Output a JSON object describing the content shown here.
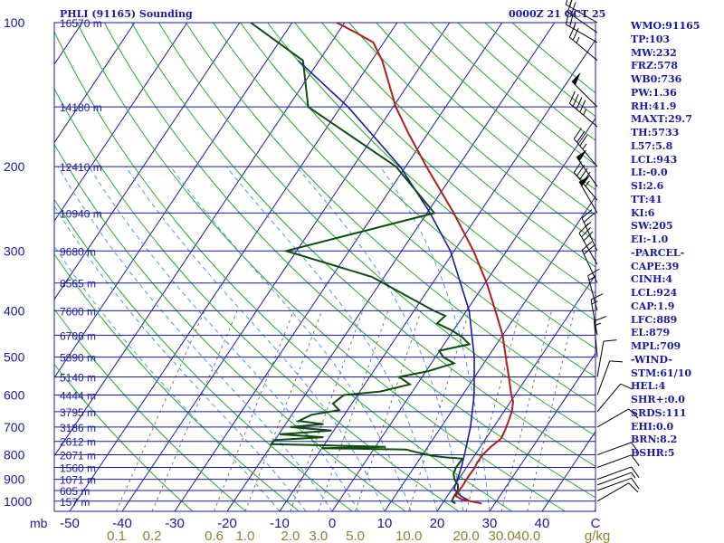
{
  "header": {
    "station": "PHLI (91165) Sounding",
    "datetime": "0000Z 21 OCT 25"
  },
  "indices": [
    "WMO:91165",
    "TP:103",
    "MW:232",
    "FRZ:578",
    "WB0:736",
    "PW:1.36",
    "RH:41.9",
    "MAXT:29.7",
    "TH:5733",
    "L57:5.8",
    "LCL:943",
    "LI:-0.0",
    "SI:2.6",
    "TT:41",
    "KI:6",
    "SW:205",
    "EI:-1.0",
    "-PARCEL-",
    "CAPE:39",
    "CINH:4",
    "LCL:924",
    "CAP:1.9",
    "LFC:889",
    "EL:879",
    "MPL:709",
    "-WIND-",
    "STM:61/10",
    "HEL:4",
    "SHR+:0.0",
    "SRDS:111",
    "EHI:0.0",
    "BRN:8.2",
    "BSHR:5"
  ],
  "colors": {
    "isobar": "#1a1a9e",
    "isotherm": "#1a1a9e",
    "dry_adiabat": "#22aa22",
    "moist_adiabat": "#46a0d2",
    "mixing_ratio": "#777777",
    "temperature": "#b01e1e",
    "dewpoint": "#0e4d0e",
    "parcel": "#1a1a9e",
    "axis_text": "#1a1a9e",
    "mixing_text": "#8c8232",
    "wind_barb": "#000000"
  },
  "chart_data": {
    "type": "skew-t",
    "title": "PHLI (91165) Sounding",
    "subtitle": "0000Z 21 OCT 25",
    "pressure_axis": {
      "unit": "mb",
      "ticks": [
        100,
        200,
        300,
        400,
        500,
        600,
        700,
        800,
        900,
        1000
      ],
      "range": [
        100,
        1000
      ]
    },
    "temperature_axis": {
      "unit": "C",
      "ticks": [
        -50,
        -40,
        -30,
        -20,
        -10,
        0,
        10,
        20,
        30,
        40
      ],
      "range": [
        -50,
        50
      ]
    },
    "mixing_ratio_axis": {
      "unit": "g/kg",
      "ticks": [
        "0.1",
        "0.2",
        "0.6",
        "1.0",
        "2.0",
        "3.0",
        "5.0",
        "10.0",
        "20.0",
        "30.0",
        "40.0"
      ],
      "values": [
        0.1,
        0.2,
        0.6,
        1.0,
        2.0,
        3.0,
        5.0,
        10.0,
        20.0,
        30.0,
        40.0
      ]
    },
    "height_labels": [
      {
        "p": 100,
        "text": "16570 m"
      },
      {
        "p": 150,
        "text": "14180 m"
      },
      {
        "p": 200,
        "text": "12410 m"
      },
      {
        "p": 250,
        "text": "10940 m"
      },
      {
        "p": 300,
        "text": "9680 m"
      },
      {
        "p": 350,
        "text": "8565 m"
      },
      {
        "p": 400,
        "text": "7600 m"
      },
      {
        "p": 450,
        "text": "6706 m"
      },
      {
        "p": 500,
        "text": "5890 m"
      },
      {
        "p": 550,
        "text": "5140 m"
      },
      {
        "p": 600,
        "text": "4444 m"
      },
      {
        "p": 650,
        "text": "3795 m"
      },
      {
        "p": 700,
        "text": "3186 m"
      },
      {
        "p": 750,
        "text": "2612 m"
      },
      {
        "p": 800,
        "text": "2071 m"
      },
      {
        "p": 850,
        "text": "1560 m"
      },
      {
        "p": 900,
        "text": "1071 m"
      },
      {
        "p": 950,
        "text": "605 m"
      },
      {
        "p": 1000,
        "text": "157 m"
      }
    ],
    "extra_isobars": [
      105,
      110,
      120,
      150,
      165,
      200,
      220,
      235,
      250,
      300,
      320,
      350,
      400,
      450,
      500,
      550,
      600,
      650,
      700,
      750,
      800,
      850,
      900,
      925,
      950,
      1000
    ],
    "temperature": [
      {
        "p": 1011,
        "t": 27.5
      },
      {
        "p": 1000,
        "t": 25.0
      },
      {
        "p": 990,
        "t": 23.0
      },
      {
        "p": 975,
        "t": 21.6
      },
      {
        "p": 950,
        "t": 21.5
      },
      {
        "p": 925,
        "t": 21.6
      },
      {
        "p": 900,
        "t": 21.5
      },
      {
        "p": 850,
        "t": 21.6
      },
      {
        "p": 830,
        "t": 21.4
      },
      {
        "p": 800,
        "t": 21.5
      },
      {
        "p": 770,
        "t": 22.0
      },
      {
        "p": 740,
        "t": 22.9
      },
      {
        "p": 710,
        "t": 22.6
      },
      {
        "p": 700,
        "t": 22.4
      },
      {
        "p": 680,
        "t": 22.1
      },
      {
        "p": 650,
        "t": 21.5
      },
      {
        "p": 620,
        "t": 20.5
      },
      {
        "p": 600,
        "t": 19.3
      },
      {
        "p": 560,
        "t": 17.1
      },
      {
        "p": 500,
        "t": 13.4
      },
      {
        "p": 450,
        "t": 10.0
      },
      {
        "p": 400,
        "t": 5.5
      },
      {
        "p": 350,
        "t": 0.3
      },
      {
        "p": 300,
        "t": -6.3
      },
      {
        "p": 250,
        "t": -14.9
      },
      {
        "p": 200,
        "t": -26.0
      },
      {
        "p": 170,
        "t": -33.8
      },
      {
        "p": 150,
        "t": -39.5
      },
      {
        "p": 120,
        "t": -48.0
      },
      {
        "p": 110,
        "t": -52.0
      },
      {
        "p": 105,
        "t": -56.5
      },
      {
        "p": 100,
        "t": -61.5
      }
    ],
    "dewpoint": [
      {
        "p": 1011,
        "t": 22.5
      },
      {
        "p": 1000,
        "t": 21.5
      },
      {
        "p": 975,
        "t": 21.3
      },
      {
        "p": 950,
        "t": 21.3
      },
      {
        "p": 925,
        "t": 20.6
      },
      {
        "p": 900,
        "t": 19.2
      },
      {
        "p": 875,
        "t": 18.3
      },
      {
        "p": 850,
        "t": 18.0
      },
      {
        "p": 815,
        "t": 18.1
      },
      {
        "p": 810,
        "t": 14.7
      },
      {
        "p": 805,
        "t": 12.5
      },
      {
        "p": 800,
        "t": 11.0
      },
      {
        "p": 790,
        "t": 8.5
      },
      {
        "p": 780,
        "t": 6.2
      },
      {
        "p": 775,
        "t": -10.0
      },
      {
        "p": 770,
        "t": 2.0
      },
      {
        "p": 765,
        "t": -8.5
      },
      {
        "p": 760,
        "t": -20.2
      },
      {
        "p": 745,
        "t": -20.1
      },
      {
        "p": 735,
        "t": -11.1
      },
      {
        "p": 725,
        "t": -19.8
      },
      {
        "p": 712,
        "t": -10.4
      },
      {
        "p": 700,
        "t": -18.7
      },
      {
        "p": 690,
        "t": -12.8
      },
      {
        "p": 680,
        "t": -17.9
      },
      {
        "p": 660,
        "t": -16.3
      },
      {
        "p": 645,
        "t": -11.6
      },
      {
        "p": 625,
        "t": -13.6
      },
      {
        "p": 600,
        "t": -12.6
      },
      {
        "p": 590,
        "t": -6.1
      },
      {
        "p": 570,
        "t": -1.4
      },
      {
        "p": 550,
        "t": -4.4
      },
      {
        "p": 535,
        "t": 0.4
      },
      {
        "p": 515,
        "t": 4.3
      },
      {
        "p": 500,
        "t": 1.5
      },
      {
        "p": 485,
        "t": -0.1
      },
      {
        "p": 470,
        "t": 4.8
      },
      {
        "p": 455,
        "t": 2.7
      },
      {
        "p": 440,
        "t": -0.2
      },
      {
        "p": 425,
        "t": -4.0
      },
      {
        "p": 410,
        "t": -3.4
      },
      {
        "p": 400,
        "t": -6.2
      },
      {
        "p": 380,
        "t": -11.3
      },
      {
        "p": 340,
        "t": -22.3
      },
      {
        "p": 300,
        "t": -42.0
      },
      {
        "p": 250,
        "t": -18.6
      },
      {
        "p": 200,
        "t": -31.8
      },
      {
        "p": 150,
        "t": -56.2
      },
      {
        "p": 120,
        "t": -63.1
      },
      {
        "p": 100,
        "t": -77.9
      }
    ],
    "parcel": [
      {
        "p": 1000,
        "t": 25.0
      },
      {
        "p": 975,
        "t": 22.5
      },
      {
        "p": 943,
        "t": 20.4
      },
      {
        "p": 925,
        "t": 20.1
      },
      {
        "p": 900,
        "t": 19.8
      },
      {
        "p": 850,
        "t": 19.0
      },
      {
        "p": 800,
        "t": 18.0
      },
      {
        "p": 700,
        "t": 15.6
      },
      {
        "p": 600,
        "t": 12.2
      },
      {
        "p": 500,
        "t": 7.4
      },
      {
        "p": 400,
        "t": 0.5
      },
      {
        "p": 300,
        "t": -10.7
      },
      {
        "p": 250,
        "t": -19.4
      },
      {
        "p": 200,
        "t": -31.0
      },
      {
        "p": 150,
        "t": -48.6
      },
      {
        "p": 120,
        "t": -64.0
      }
    ],
    "wind_barbs": [
      {
        "p": 100,
        "dir": 300,
        "spd": 15
      },
      {
        "p": 105,
        "dir": 305,
        "spd": 20
      },
      {
        "p": 110,
        "dir": 300,
        "spd": 25
      },
      {
        "p": 120,
        "dir": 310,
        "spd": 25
      },
      {
        "p": 150,
        "dir": 315,
        "spd": 50
      },
      {
        "p": 165,
        "dir": 310,
        "spd": 45
      },
      {
        "p": 200,
        "dir": 320,
        "spd": 35
      },
      {
        "p": 220,
        "dir": 325,
        "spd": 50
      },
      {
        "p": 235,
        "dir": 320,
        "spd": 45
      },
      {
        "p": 250,
        "dir": 330,
        "spd": 50
      },
      {
        "p": 300,
        "dir": 335,
        "spd": 25
      },
      {
        "p": 320,
        "dir": 330,
        "spd": 30
      },
      {
        "p": 350,
        "dir": 335,
        "spd": 20
      },
      {
        "p": 400,
        "dir": 345,
        "spd": 15
      },
      {
        "p": 450,
        "dir": 350,
        "spd": 15
      },
      {
        "p": 500,
        "dir": 355,
        "spd": 15
      },
      {
        "p": 550,
        "dir": 10,
        "spd": 10
      },
      {
        "p": 600,
        "dir": 20,
        "spd": 10
      },
      {
        "p": 650,
        "dir": 40,
        "spd": 10
      },
      {
        "p": 700,
        "dir": 60,
        "spd": 10
      },
      {
        "p": 800,
        "dir": 70,
        "spd": 10
      },
      {
        "p": 850,
        "dir": 70,
        "spd": 10
      },
      {
        "p": 900,
        "dir": 70,
        "spd": 10
      },
      {
        "p": 925,
        "dir": 70,
        "spd": 5
      },
      {
        "p": 950,
        "dir": 70,
        "spd": 10
      },
      {
        "p": 1000,
        "dir": 60,
        "spd": 10
      }
    ]
  }
}
